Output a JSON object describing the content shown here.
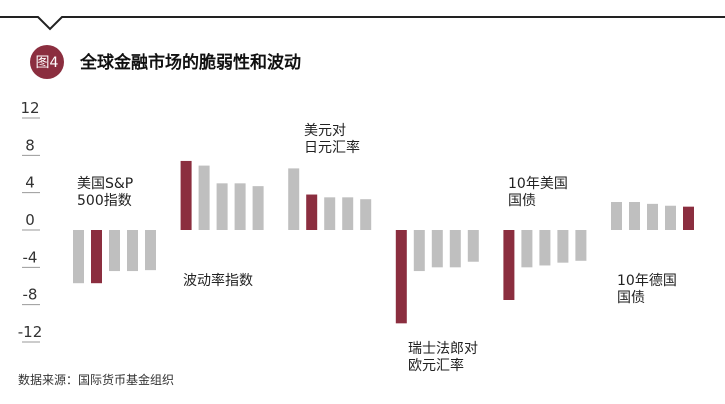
{
  "chart_data": {
    "type": "grouped-bar",
    "badge": "图4",
    "title": "全球金融市场的脆弱性和波动",
    "source": "数据来源：国际货币基金组织",
    "ylim": [
      -12,
      12
    ],
    "yticks": [
      12,
      8,
      4,
      0,
      -4,
      -8,
      -12
    ],
    "colors": {
      "base": "#bfbfbf",
      "highlight": "#8b2e3f"
    },
    "groups": [
      {
        "label": [
          "美国S&P",
          "500指数"
        ],
        "values": [
          -5.7,
          -5.7,
          -4.4,
          -4.4,
          -4.3
        ],
        "highlight": 1
      },
      {
        "label": [
          "波动率指数"
        ],
        "values": [
          7.4,
          6.9,
          5.0,
          5.0,
          4.7
        ],
        "highlight": 0
      },
      {
        "label": [
          "美元对",
          "日元汇率"
        ],
        "values": [
          6.6,
          3.8,
          3.5,
          3.5,
          3.3
        ],
        "highlight": 1
      },
      {
        "label": [
          "瑞士法郎对",
          "欧元汇率"
        ],
        "values": [
          -10.0,
          -4.4,
          -4.0,
          -4.0,
          -3.4
        ],
        "highlight": 0
      },
      {
        "label": [
          "10年美国",
          "国债"
        ],
        "values": [
          -7.5,
          -4.0,
          -3.8,
          -3.5,
          -3.3
        ],
        "highlight": 0
      },
      {
        "label": [
          "10年德国",
          "国债"
        ],
        "values": [
          3.0,
          3.0,
          2.8,
          2.6,
          2.5
        ],
        "highlight": 4
      }
    ]
  }
}
